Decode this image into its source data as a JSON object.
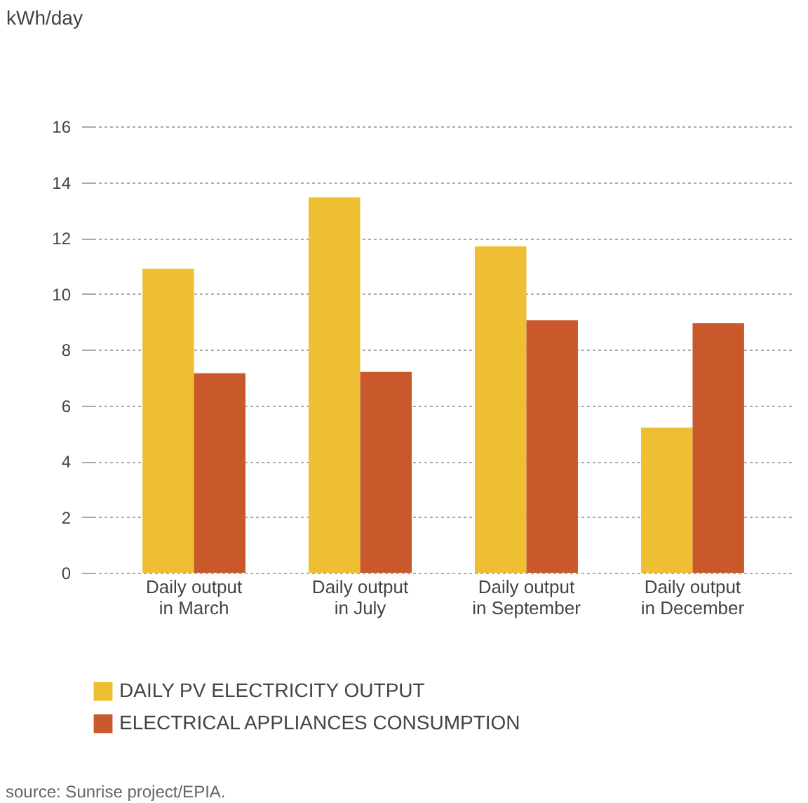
{
  "chart_data": {
    "type": "bar",
    "ylabel": "kWh/day",
    "categories": [
      "Daily output\nin March",
      "Daily output\nin July",
      "Daily output\nin September",
      "Daily output\nin December"
    ],
    "series": [
      {
        "name": "DAILY PV ELECTRICITY OUTPUT",
        "color": "#eebf33",
        "values": [
          10.9,
          13.45,
          11.7,
          5.2
        ]
      },
      {
        "name": "ELECTRICAL APPLIANCES CONSUMPTION",
        "color": "#c9582b",
        "values": [
          7.15,
          7.2,
          9.05,
          8.95
        ]
      }
    ],
    "ylim": [
      0,
      16
    ],
    "yticks": [
      0,
      2,
      4,
      6,
      8,
      10,
      12,
      14,
      16
    ],
    "grid": "y",
    "legend": "bottom left",
    "annotations": [
      "source: Sunrise project/EPIA."
    ]
  }
}
